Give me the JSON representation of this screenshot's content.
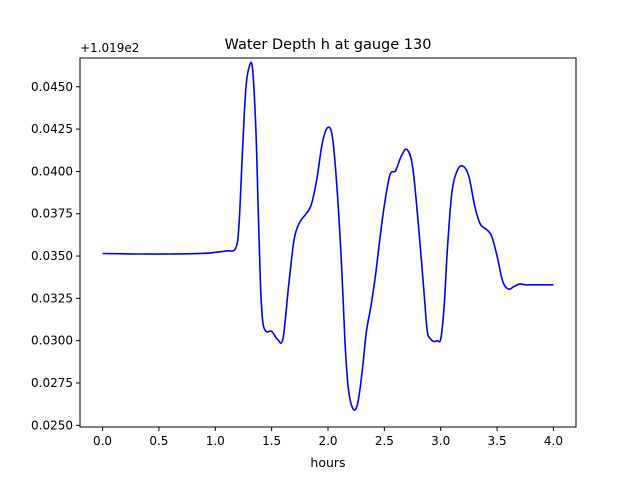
{
  "chart_data": {
    "type": "line",
    "title": "Water Depth h at gauge 130",
    "xlabel": "hours",
    "ylabel": "",
    "y_offset_label": "+1.019e2",
    "xlim": [
      -0.2,
      4.2
    ],
    "ylim": [
      0.0249,
      0.0467
    ],
    "x_ticks": [
      0.0,
      0.5,
      1.0,
      1.5,
      2.0,
      2.5,
      3.0,
      3.5,
      4.0
    ],
    "x_tick_labels": [
      "0.0",
      "0.5",
      "1.0",
      "1.5",
      "2.0",
      "2.5",
      "3.0",
      "3.5",
      "4.0"
    ],
    "y_ticks": [
      0.025,
      0.0275,
      0.03,
      0.0325,
      0.035,
      0.0375,
      0.04,
      0.0425,
      0.045
    ],
    "y_tick_labels": [
      "0.0250",
      "0.0275",
      "0.0300",
      "0.0325",
      "0.0350",
      "0.0375",
      "0.0400",
      "0.0425",
      "0.0450"
    ],
    "grid": false,
    "series": [
      {
        "color": "#0000ff",
        "x": [
          0.0,
          0.3,
          0.6,
          0.9,
          1.0,
          1.1,
          1.18,
          1.21,
          1.24,
          1.27,
          1.3,
          1.33,
          1.36,
          1.38,
          1.4,
          1.42,
          1.45,
          1.5,
          1.55,
          1.6,
          1.65,
          1.7,
          1.75,
          1.8,
          1.85,
          1.9,
          1.95,
          2.0,
          2.04,
          2.08,
          2.12,
          2.15,
          2.18,
          2.22,
          2.26,
          2.3,
          2.34,
          2.38,
          2.42,
          2.46,
          2.5,
          2.55,
          2.6,
          2.65,
          2.7,
          2.75,
          2.8,
          2.85,
          2.88,
          2.91,
          2.94,
          2.97,
          3.0,
          3.03,
          3.06,
          3.1,
          3.15,
          3.2,
          3.25,
          3.3,
          3.35,
          3.4,
          3.45,
          3.5,
          3.55,
          3.6,
          3.65,
          3.7,
          3.75,
          3.8,
          3.84,
          3.88,
          3.92,
          3.96,
          4.0
        ],
        "y": [
          0.03515,
          0.03512,
          0.03512,
          0.03516,
          0.03522,
          0.0353,
          0.03545,
          0.0368,
          0.041,
          0.0448,
          0.04615,
          0.0461,
          0.0425,
          0.038,
          0.0335,
          0.0312,
          0.03055,
          0.03055,
          0.0301,
          0.0301,
          0.0332,
          0.036,
          0.037,
          0.03745,
          0.038,
          0.0395,
          0.0417,
          0.0426,
          0.042,
          0.039,
          0.0345,
          0.03,
          0.0272,
          0.026,
          0.0262,
          0.028,
          0.0305,
          0.032,
          0.0338,
          0.036,
          0.038,
          0.0398,
          0.04005,
          0.0409,
          0.0413,
          0.0403,
          0.037,
          0.033,
          0.0306,
          0.0301,
          0.02995,
          0.03,
          0.0301,
          0.032,
          0.0355,
          0.0388,
          0.0401,
          0.0403,
          0.0397,
          0.038,
          0.0369,
          0.0366,
          0.0362,
          0.035,
          0.0335,
          0.03305,
          0.0332,
          0.03335,
          0.0333,
          0.0333,
          0.0333,
          0.0333,
          0.0333,
          0.0333,
          0.0333
        ]
      }
    ]
  }
}
